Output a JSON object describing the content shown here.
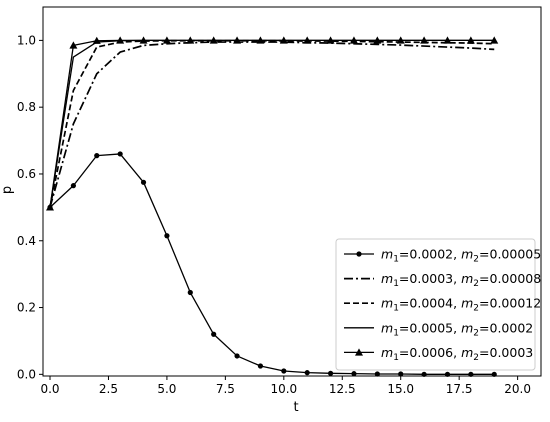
{
  "chart_data": {
    "type": "line",
    "title": "",
    "xlabel": "t",
    "ylabel": "p",
    "xlim": [
      -0.3,
      21
    ],
    "ylim": [
      -0.005,
      1.1
    ],
    "grid": false,
    "legend_position": "lower-right",
    "xticks": [
      0,
      2.5,
      5,
      7.5,
      10,
      12.5,
      15,
      17.5,
      20
    ],
    "xtick_labels": [
      "0.0",
      "2.5",
      "5.0",
      "7.5",
      "10.0",
      "12.5",
      "15.0",
      "17.5",
      "20.0"
    ],
    "yticks": [
      0,
      0.2,
      0.4,
      0.6,
      0.8,
      1.0
    ],
    "ytick_labels": [
      "0.0",
      "0.2",
      "0.4",
      "0.6",
      "0.8",
      "1.0"
    ],
    "x": [
      0,
      1,
      2,
      3,
      4,
      5,
      6,
      7,
      8,
      9,
      10,
      11,
      12,
      13,
      14,
      15,
      16,
      17,
      18,
      19
    ],
    "series": [
      {
        "m1": "0.0002",
        "m2": "0.00005",
        "style": "solid",
        "marker": "circle",
        "values": [
          0.5,
          0.565,
          0.655,
          0.66,
          0.575,
          0.415,
          0.245,
          0.12,
          0.055,
          0.025,
          0.01,
          0.005,
          0.003,
          0.002,
          0.001,
          0.001,
          0.0,
          0.0,
          0.0,
          0.0
        ]
      },
      {
        "m1": "0.0003",
        "m2": "0.00008",
        "style": "dashdot",
        "marker": "none",
        "values": [
          0.5,
          0.75,
          0.9,
          0.965,
          0.985,
          0.99,
          0.993,
          0.995,
          0.995,
          0.995,
          0.995,
          0.993,
          0.992,
          0.99,
          0.988,
          0.986,
          0.983,
          0.98,
          0.977,
          0.973
        ]
      },
      {
        "m1": "0.0004",
        "m2": "0.00012",
        "style": "dashed",
        "marker": "none",
        "values": [
          0.5,
          0.85,
          0.98,
          0.995,
          0.998,
          0.999,
          0.999,
          0.999,
          0.999,
          0.999,
          0.999,
          0.998,
          0.998,
          0.997,
          0.996,
          0.995,
          0.994,
          0.993,
          0.992,
          0.99
        ]
      },
      {
        "m1": "0.0005",
        "m2": "0.0002",
        "style": "solid",
        "marker": "none",
        "values": [
          0.5,
          0.95,
          0.995,
          0.999,
          1.0,
          1.0,
          1.0,
          1.0,
          1.0,
          1.0,
          1.0,
          1.0,
          1.0,
          1.0,
          1.0,
          1.0,
          1.0,
          1.0,
          1.0,
          1.0
        ]
      },
      {
        "m1": "0.0006",
        "m2": "0.0003",
        "style": "solid",
        "marker": "triangle",
        "values": [
          0.5,
          0.985,
          0.999,
          1.0,
          1.0,
          1.0,
          1.0,
          1.0,
          1.0,
          1.0,
          1.0,
          1.0,
          1.0,
          1.0,
          1.0,
          1.0,
          1.0,
          1.0,
          1.0,
          1.0
        ]
      }
    ],
    "legend_template": {
      "m1_symbol": "m",
      "m1_sub": "1",
      "m2_symbol": "m",
      "m2_sub": "2",
      "eq": "=",
      "sep": ", "
    }
  }
}
